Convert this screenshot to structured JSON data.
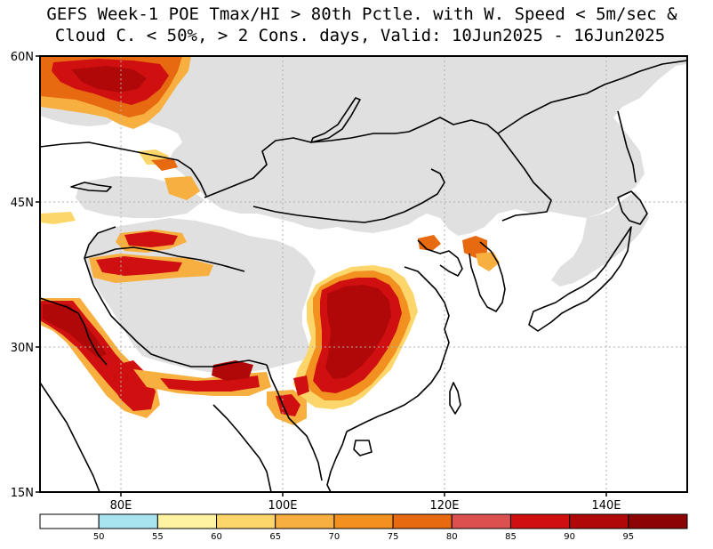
{
  "title": {
    "line1": "GEFS Week-1 POE Tmax/HI > 80th Pctle. with W. Speed < 5m/sec &",
    "line2": "Cloud C. < 50%, > 2 Cons. days, Valid: 10Jun2025 - 16Jun2025"
  },
  "map": {
    "lat_labels": [
      "60N",
      "45N",
      "30N",
      "15N"
    ],
    "lon_labels": [
      "80E",
      "100E",
      "120E",
      "140E"
    ],
    "colors": {
      "land_masked": "#e0e0e0",
      "coast": "#000000",
      "grid": "#b0b0b0"
    }
  },
  "colorbar": {
    "labels": [
      "50",
      "55",
      "60",
      "65",
      "70",
      "75",
      "80",
      "85",
      "90",
      "95"
    ],
    "colors": [
      "#ffffff",
      "#a8e4f0",
      "#fff2a0",
      "#fcd66a",
      "#f7b040",
      "#f29020",
      "#e86a10",
      "#dd5050",
      "#d01010",
      "#b00808",
      "#8c0404"
    ]
  }
}
